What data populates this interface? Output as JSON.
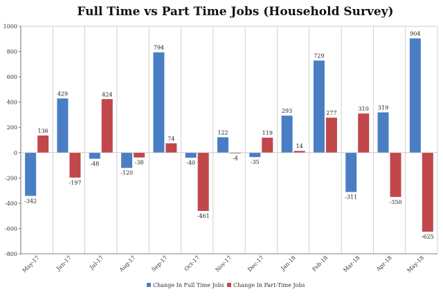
{
  "chart_data": {
    "type": "bar",
    "title": "Full Time vs Part Time Jobs (Household Survey)",
    "categories": [
      "May-17",
      "Jun-17",
      "Jul-17",
      "Aug-17",
      "Sep-17",
      "Oct-17",
      "Nov-17",
      "Dec-17",
      "Jan-18",
      "Feb-18",
      "Mar-18",
      "Apr-18",
      "May-18"
    ],
    "series": [
      {
        "name": "Change In Full Time Jobs",
        "color": "#4a7ec4",
        "values": [
          -342,
          429,
          -48,
          -120,
          794,
          -40,
          122,
          -35,
          293,
          729,
          -311,
          319,
          904
        ]
      },
      {
        "name": "Change In Part-Time Jobs",
        "color": "#c0474a",
        "values": [
          136,
          -197,
          424,
          -38,
          74,
          -461,
          -4,
          119,
          14,
          277,
          310,
          -350,
          -625
        ]
      }
    ],
    "ylim": [
      -800,
      1000
    ],
    "yticks": [
      -800,
      -600,
      -400,
      -200,
      0,
      200,
      400,
      600,
      800,
      1000
    ],
    "grid": "vertical category separators",
    "legend": "bottom-center"
  }
}
